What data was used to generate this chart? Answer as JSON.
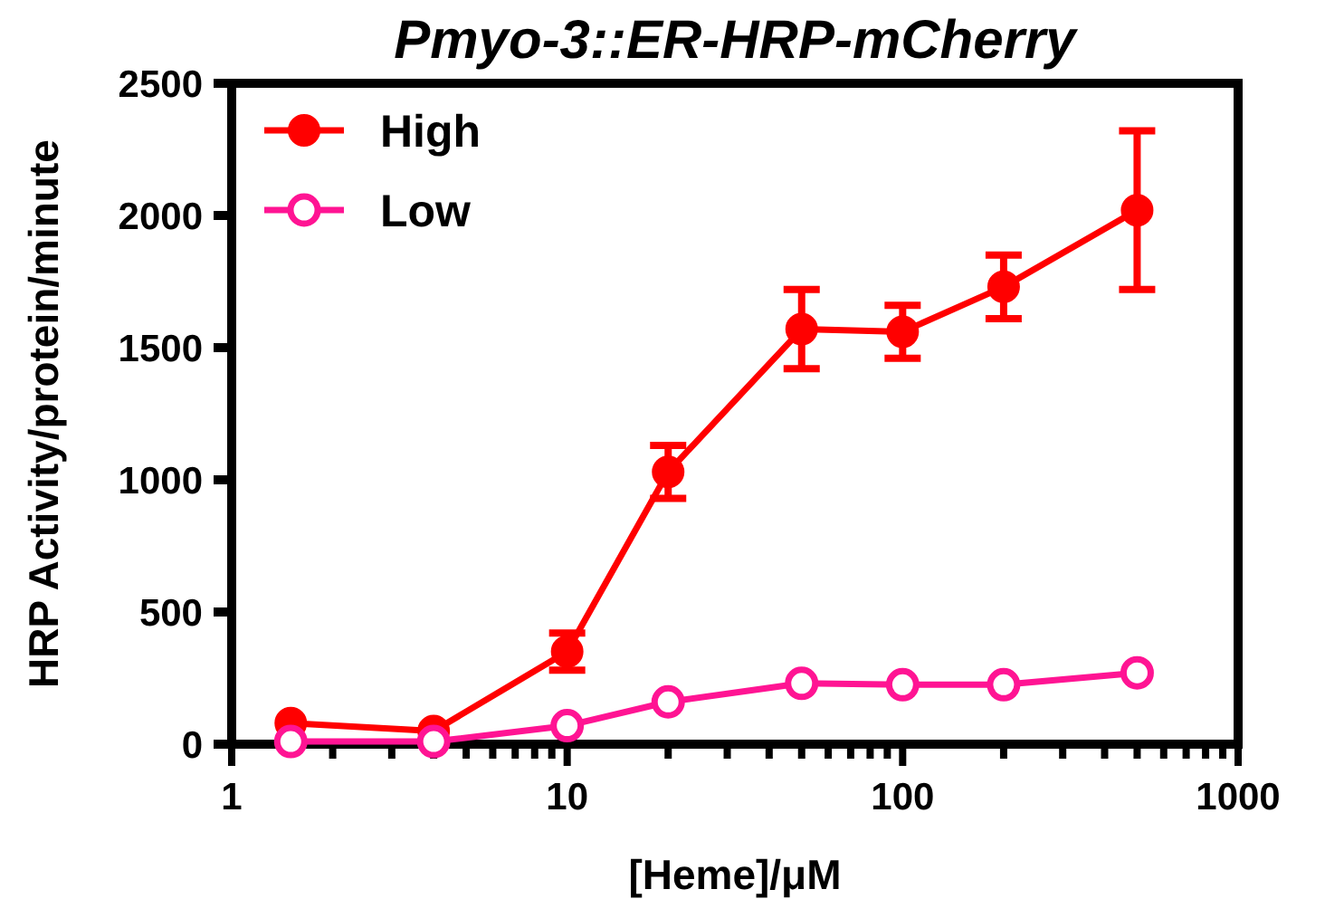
{
  "chart_data": {
    "type": "line",
    "title": "Pmyo-3::ER-HRP-mCherry",
    "xlabel": "[Heme]/μM",
    "ylabel": "HRP Activity/protein/minute",
    "x": [
      1.5,
      4,
      10,
      20,
      50,
      100,
      200,
      500
    ],
    "series": [
      {
        "name": "High",
        "color": "#ff0000",
        "marker": "circle",
        "values": [
          80,
          50,
          350,
          1030,
          1570,
          1560,
          1730,
          2020
        ],
        "errors": [
          null,
          null,
          70,
          100,
          150,
          100,
          120,
          300
        ]
      },
      {
        "name": "Low",
        "color": "#ff1493",
        "marker": "circle",
        "values": [
          10,
          10,
          70,
          160,
          230,
          225,
          225,
          270
        ]
      }
    ],
    "log": "x",
    "xlim": [
      1,
      1000
    ],
    "ylim": [
      0,
      2500
    ],
    "xticks": [
      1,
      {
        "value": 2,
        "label": null
      },
      {
        "value": 3,
        "label": null
      },
      {
        "value": 4,
        "label": null
      },
      {
        "value": 5,
        "label": null
      },
      {
        "value": 6,
        "label": null
      },
      {
        "value": 7,
        "label": null
      },
      {
        "value": 8,
        "label": null
      },
      {
        "value": 9,
        "label": null
      },
      10,
      {
        "value": 20,
        "label": null
      },
      {
        "value": 30,
        "label": null
      },
      {
        "value": 40,
        "label": null
      },
      {
        "value": 50,
        "label": null
      },
      {
        "value": 60,
        "label": null
      },
      {
        "value": 70,
        "label": null
      },
      {
        "value": 80,
        "label": null
      },
      {
        "value": 90,
        "label": null
      },
      100,
      {
        "value": 200,
        "label": null
      },
      {
        "value": 300,
        "label": null
      },
      {
        "value": 400,
        "label": null
      },
      {
        "value": 500,
        "label": null
      },
      {
        "value": 600,
        "label": null
      },
      {
        "value": 700,
        "label": null
      },
      {
        "value": 800,
        "label": null
      },
      {
        "value": 900,
        "label": null
      },
      1000
    ],
    "yticks": [
      0,
      500,
      1000,
      1500,
      2000,
      2500
    ],
    "grid": false,
    "legend": "top left"
  }
}
